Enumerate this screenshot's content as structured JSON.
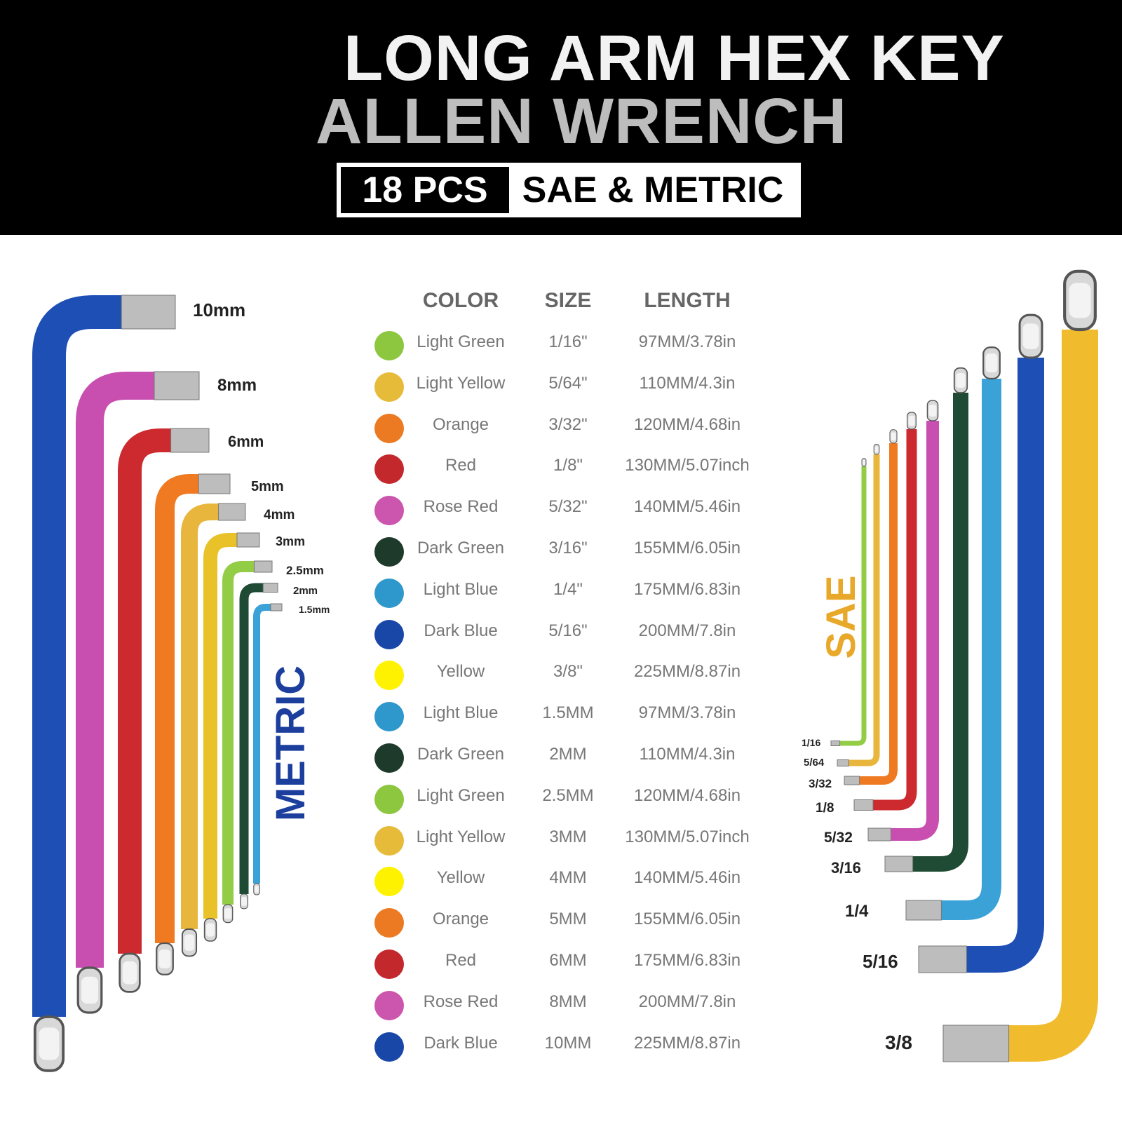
{
  "header": {
    "title_line1": "LONG ARM HEX KEY",
    "title_line2": "ALLEN WRENCH",
    "badge_count": "18 PCS",
    "badge_type": "SAE & METRIC"
  },
  "metric": {
    "label": "METRIC",
    "label_color": "#1c3f9e",
    "sizes": [
      "10mm",
      "8mm",
      "6mm",
      "5mm",
      "4mm",
      "3mm",
      "2.5mm",
      "2mm",
      "1.5mm"
    ]
  },
  "sae": {
    "label": "SAE",
    "label_color": "#e8a82a",
    "sizes": [
      "1/16",
      "5/64",
      "3/32",
      "1/8",
      "5/32",
      "3/16",
      "1/4",
      "5/16",
      "3/8"
    ]
  },
  "table": {
    "headers": {
      "color": "COLOR",
      "size": "SIZE",
      "length": "LENGTH"
    },
    "rows": [
      {
        "color_name": "Light Green",
        "color_hex": "#8dc63f",
        "size": "1/16\"",
        "length": "97MM/3.78in"
      },
      {
        "color_name": "Light Yellow",
        "color_hex": "#e6bb3a",
        "size": "5/64\"",
        "length": "110MM/4.3in"
      },
      {
        "color_name": "Orange",
        "color_hex": "#ec7a22",
        "size": "3/32\"",
        "length": "120MM/4.68in"
      },
      {
        "color_name": "Red",
        "color_hex": "#c3282d",
        "size": "1/8\"",
        "length": "130MM/5.07inch"
      },
      {
        "color_name": "Rose Red",
        "color_hex": "#cc55ad",
        "size": "5/32\"",
        "length": "140MM/5.46in"
      },
      {
        "color_name": "Dark Green",
        "color_hex": "#1d3a2a",
        "size": "3/16\"",
        "length": "155MM/6.05in"
      },
      {
        "color_name": "Light Blue",
        "color_hex": "#2e98cc",
        "size": "1/4\"",
        "length": "175MM/6.83in"
      },
      {
        "color_name": "Dark Blue",
        "color_hex": "#1947a8",
        "size": "5/16\"",
        "length": "200MM/7.8in"
      },
      {
        "color_name": "Yellow",
        "color_hex": "#fff200",
        "size": "3/8\"",
        "length": "225MM/8.87in"
      },
      {
        "color_name": "Light Blue",
        "color_hex": "#2e98cc",
        "size": "1.5MM",
        "length": "97MM/3.78in"
      },
      {
        "color_name": "Dark Green",
        "color_hex": "#1d3a2a",
        "size": "2MM",
        "length": "110MM/4.3in"
      },
      {
        "color_name": "Light Green",
        "color_hex": "#8dc63f",
        "size": "2.5MM",
        "length": "120MM/4.68in"
      },
      {
        "color_name": "Light Yellow",
        "color_hex": "#e6bb3a",
        "size": "3MM",
        "length": "130MM/5.07inch"
      },
      {
        "color_name": "Yellow",
        "color_hex": "#fff200",
        "size": "4MM",
        "length": "140MM/5.46in"
      },
      {
        "color_name": "Orange",
        "color_hex": "#ec7a22",
        "size": "5MM",
        "length": "155MM/6.05in"
      },
      {
        "color_name": "Red",
        "color_hex": "#c3282d",
        "size": "6MM",
        "length": "175MM/6.83in"
      },
      {
        "color_name": "Rose Red",
        "color_hex": "#cc55ad",
        "size": "8MM",
        "length": "200MM/7.8in"
      },
      {
        "color_name": "Dark Blue",
        "color_hex": "#1947a8",
        "size": "10MM",
        "length": "225MM/8.87in"
      }
    ]
  },
  "key_colors": {
    "metric": [
      "#1d4fb4",
      "#c84fb0",
      "#cc2a2e",
      "#ef7a22",
      "#e8b63c",
      "#e9c229",
      "#93cc45",
      "#1f4a33",
      "#3ba2d8"
    ],
    "sae": [
      "#93cc45",
      "#e8b63c",
      "#ef7a22",
      "#cc2a2e",
      "#c84fb0",
      "#1f4a33",
      "#3ba2d8",
      "#1d4fb4",
      "#f1bb2e"
    ]
  }
}
